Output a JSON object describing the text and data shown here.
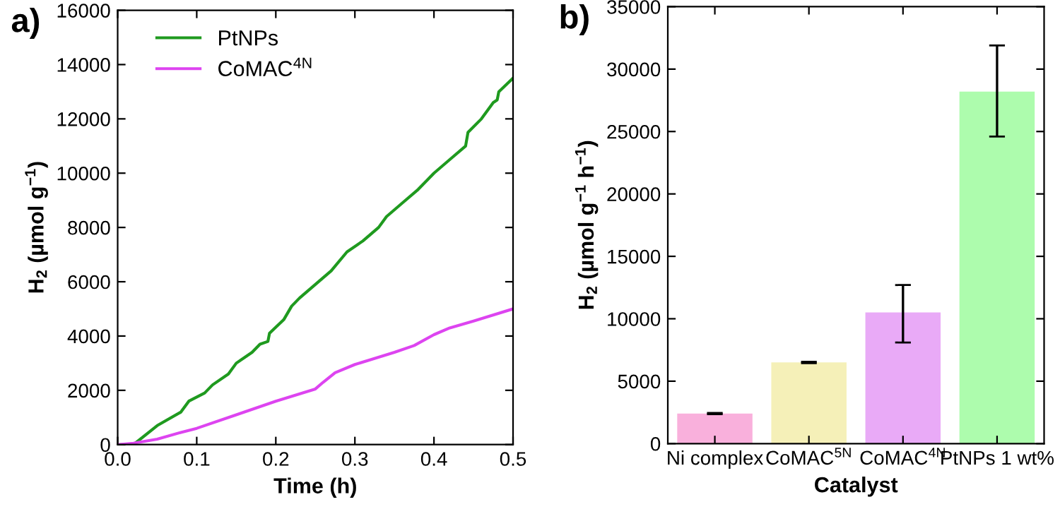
{
  "chart_data": [
    {
      "type": "line",
      "title": "a)",
      "xlabel": "Time (h)",
      "ylabel": "H$_{2}$ (µmol g$^{−1}$)",
      "xlim": [
        0,
        0.5
      ],
      "xticks": [
        {
          "value": 0,
          "label": "0.0"
        },
        0.1,
        0.2,
        0.3,
        0.4,
        0.5
      ],
      "ylim": [
        0,
        16000
      ],
      "yticks": [
        0,
        2000,
        4000,
        6000,
        8000,
        10000,
        12000,
        14000,
        16000
      ],
      "grid": false,
      "legend": "top left",
      "marker": "none",
      "line_style": "solid",
      "series": [
        {
          "name": "PtNPs",
          "color": "#1f9a1f",
          "x": [
            0,
            0.02,
            0.05,
            0.08,
            0.09,
            0.11,
            0.12,
            0.14,
            0.15,
            0.17,
            0.18,
            0.19,
            0.192,
            0.21,
            0.22,
            0.23,
            0.25,
            0.27,
            0.29,
            0.31,
            0.33,
            0.34,
            0.36,
            0.38,
            0.4,
            0.42,
            0.44,
            0.443,
            0.46,
            0.475,
            0.48,
            0.482,
            0.5
          ],
          "values": [
            0,
            0,
            700,
            1200,
            1600,
            1900,
            2200,
            2600,
            3000,
            3400,
            3700,
            3800,
            4100,
            4600,
            5100,
            5400,
            5900,
            6400,
            7100,
            7500,
            8000,
            8400,
            8900,
            9400,
            10000,
            10500,
            11000,
            11500,
            12000,
            12600,
            12700,
            13000,
            13500
          ]
        },
        {
          "name": "CoMAC$^{4N}$",
          "color": "#dd44f0",
          "x": [
            0,
            0.02,
            0.05,
            0.08,
            0.1,
            0.15,
            0.2,
            0.25,
            0.26,
            0.275,
            0.3,
            0.35,
            0.375,
            0.4,
            0.42,
            0.45,
            0.5
          ],
          "values": [
            0,
            50,
            200,
            450,
            600,
            1100,
            1600,
            2050,
            2300,
            2650,
            2950,
            3400,
            3650,
            4050,
            4300,
            4550,
            5000
          ]
        }
      ]
    },
    {
      "type": "bar",
      "title": "b)",
      "xlabel": "Catalyst",
      "ylabel": "H$_{2}$ (µmol g$^{−1}$ h$^{−1}$)",
      "categories": [
        "Ni complex",
        "CoMAC$^{5N}$",
        "CoMAC$^{4N}$",
        "PtNPs 1 wt%"
      ],
      "ylim": [
        0,
        35000
      ],
      "yticks": [
        0,
        5000,
        10000,
        15000,
        20000,
        25000,
        30000,
        35000
      ],
      "grid": false,
      "values": [
        2400,
        6500,
        10500,
        28200
      ],
      "errors": [
        50,
        60,
        [
          8100,
          12700
        ],
        [
          24600,
          31900
        ]
      ],
      "colors": [
        "#f9b0dc",
        "#f5f0b8",
        "#e9aaf7",
        "#adfcad"
      ]
    }
  ]
}
